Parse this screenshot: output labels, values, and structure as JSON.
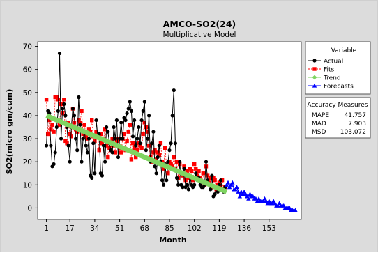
{
  "chart_data": {
    "type": "line",
    "title": "AMCO-SO2(24)",
    "subtitle": "Multiplicative Model",
    "xlabel": "Month",
    "ylabel": "SO2(micro gm/cum)",
    "xlim": [
      -5,
      175
    ],
    "ylim": [
      -5,
      72
    ],
    "x_ticks": [
      1,
      17,
      34,
      51,
      68,
      85,
      102,
      119,
      136,
      153
    ],
    "y_ticks": [
      0,
      10,
      20,
      30,
      40,
      50,
      60,
      70
    ],
    "grid": false,
    "legend_position": "right",
    "legend_title": "Variable",
    "series": [
      {
        "name": "Actual",
        "color": "#000000",
        "marker": "circle",
        "line": "solid",
        "x": [
          1,
          2,
          3,
          4,
          5,
          6,
          7,
          8,
          9,
          10,
          11,
          12,
          13,
          14,
          15,
          16,
          17,
          18,
          19,
          20,
          21,
          22,
          23,
          24,
          25,
          26,
          27,
          28,
          29,
          30,
          31,
          32,
          33,
          34,
          35,
          36,
          37,
          38,
          39,
          40,
          41,
          42,
          43,
          44,
          45,
          46,
          47,
          48,
          49,
          50,
          51,
          52,
          53,
          54,
          55,
          56,
          57,
          58,
          59,
          60,
          61,
          62,
          63,
          64,
          65,
          66,
          67,
          68,
          69,
          70,
          71,
          72,
          73,
          74,
          75,
          76,
          77,
          78,
          79,
          80,
          81,
          82,
          83,
          84,
          85,
          86,
          87,
          88,
          89,
          90,
          91,
          92,
          93,
          94,
          95,
          96,
          97,
          98,
          99,
          100,
          101,
          102,
          103,
          104,
          105,
          106,
          107,
          108,
          109,
          110,
          111,
          112,
          113,
          114,
          115,
          116,
          117,
          118,
          119,
          120,
          121,
          122,
          123
        ],
        "y": [
          27,
          42,
          41,
          27,
          18,
          19,
          24,
          35,
          42,
          67,
          30,
          43,
          45,
          40,
          35,
          27,
          20,
          35,
          43,
          40,
          30,
          25,
          48,
          36,
          20,
          30,
          33,
          27,
          24,
          30,
          14,
          13,
          28,
          15,
          38,
          31,
          32,
          15,
          14,
          27,
          20,
          35,
          33,
          28,
          25,
          24,
          35,
          30,
          38,
          22,
          30,
          37,
          30,
          39,
          38,
          41,
          43,
          46,
          42,
          31,
          38,
          27,
          30,
          35,
          28,
          38,
          42,
          46,
          25,
          30,
          40,
          20,
          28,
          33,
          18,
          15,
          22,
          27,
          20,
          12,
          10,
          19,
          12,
          20,
          25,
          28,
          40,
          51,
          28,
          13,
          10,
          20,
          10,
          9,
          17,
          9,
          10,
          8,
          14,
          10,
          9,
          10,
          15,
          12,
          13,
          10,
          9,
          9,
          10,
          20,
          12,
          10,
          8,
          14,
          5,
          6,
          9,
          7,
          10,
          12,
          8,
          7,
          9
        ]
      },
      {
        "name": "Fits",
        "color": "#ff0000",
        "marker": "square",
        "line": "dashed",
        "x": [
          1,
          2,
          3,
          4,
          5,
          6,
          7,
          8,
          9,
          10,
          11,
          12,
          13,
          14,
          15,
          16,
          17,
          18,
          19,
          20,
          21,
          22,
          23,
          24,
          25,
          26,
          27,
          28,
          29,
          30,
          31,
          32,
          33,
          34,
          35,
          36,
          37,
          38,
          39,
          40,
          41,
          42,
          43,
          44,
          45,
          46,
          47,
          48,
          49,
          50,
          51,
          52,
          53,
          54,
          55,
          56,
          57,
          58,
          59,
          60,
          61,
          62,
          63,
          64,
          65,
          66,
          67,
          68,
          69,
          70,
          71,
          72,
          73,
          74,
          75,
          76,
          77,
          78,
          79,
          80,
          81,
          82,
          83,
          84,
          85,
          86,
          87,
          88,
          89,
          90,
          91,
          92,
          93,
          94,
          95,
          96,
          97,
          98,
          99,
          100,
          101,
          102,
          103,
          104,
          105,
          106,
          107,
          108,
          109,
          110,
          111,
          112,
          113,
          114,
          115,
          116,
          117,
          118,
          119,
          120,
          121,
          122,
          123
        ],
        "y": [
          47,
          32,
          38,
          34,
          36,
          33,
          48,
          48,
          47,
          36,
          45,
          41,
          47,
          29,
          28,
          37,
          32,
          31,
          43,
          37,
          34,
          33,
          38,
          37,
          42,
          32,
          36,
          31,
          30,
          34,
          33,
          38,
          31,
          29,
          33,
          31,
          25,
          32,
          28,
          30,
          34,
          27,
          22,
          26,
          25,
          30,
          27,
          24,
          29,
          30,
          26,
          24,
          30,
          32,
          25,
          29,
          33,
          36,
          21,
          28,
          26,
          22,
          25,
          28,
          27,
          26,
          32,
          37,
          35,
          33,
          27,
          22,
          20,
          24,
          25,
          21,
          24,
          23,
          28,
          20,
          17,
          26,
          18,
          15,
          20,
          19,
          18,
          22,
          17,
          20,
          13,
          19,
          15,
          14,
          18,
          12,
          16,
          13,
          17,
          16,
          12,
          19,
          17,
          14,
          16,
          13,
          11,
          15,
          10,
          18,
          14,
          11,
          13,
          9,
          13,
          12,
          8,
          10,
          11,
          9,
          12,
          8,
          9
        ]
      },
      {
        "name": "Trend",
        "color": "#7fd461",
        "marker": "diamond",
        "line": "solid",
        "x": [
          1,
          124
        ],
        "y": [
          40,
          7
        ]
      },
      {
        "name": "Forecasts",
        "color": "#0000ff",
        "marker": "triangle",
        "line": "solid",
        "x": [
          124,
          125,
          126,
          127,
          128,
          129,
          130,
          131,
          132,
          133,
          134,
          135,
          136,
          137,
          138,
          139,
          140,
          141,
          142,
          143,
          144,
          145,
          146,
          147,
          148,
          149,
          150,
          151,
          152,
          153,
          154,
          155,
          156,
          157,
          158,
          159,
          160,
          161,
          162,
          163,
          164,
          165,
          166,
          167,
          168,
          169,
          170,
          171
        ],
        "y": [
          10,
          11,
          9,
          10,
          11,
          8,
          8,
          9,
          7,
          5,
          7,
          6,
          7,
          6,
          5,
          4,
          6,
          5,
          5,
          4,
          4,
          3,
          4,
          3,
          3,
          3,
          4,
          3,
          2,
          3,
          2,
          2,
          3,
          2,
          1,
          1,
          2,
          1,
          1,
          1,
          0,
          0,
          0,
          0,
          -1,
          -1,
          -1,
          -1
        ]
      }
    ],
    "accuracy": {
      "title": "Accuracy Measures",
      "rows": [
        {
          "label": "MAPE",
          "value": "41.757"
        },
        {
          "label": "MAD",
          "value": "7.903"
        },
        {
          "label": "MSD",
          "value": "103.072"
        }
      ]
    }
  }
}
